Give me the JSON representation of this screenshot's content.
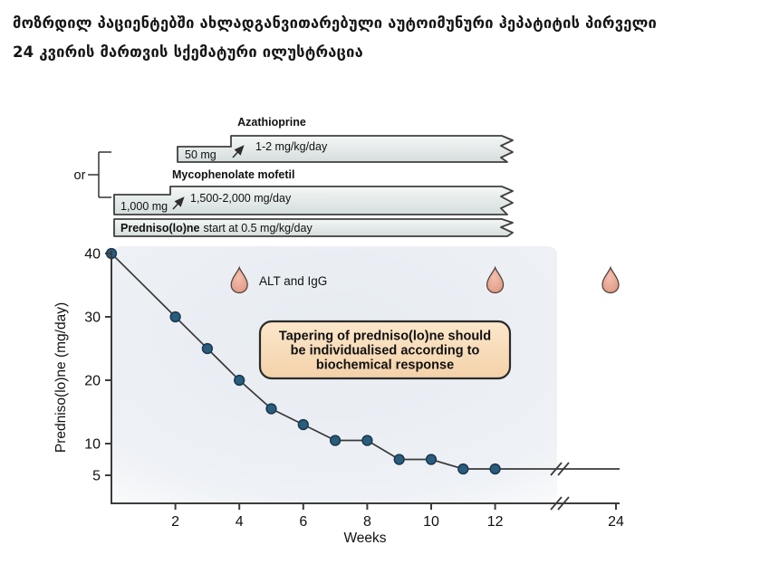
{
  "title": {
    "line1": "მოზრდილ პაციენტებში ახლადგანვითარებული აუტოიმუნური ჰეპატიტის პირველი",
    "line2": "24 კვირის მართვის სქემატური ილუსტრაცია"
  },
  "figure": {
    "or_label": "or",
    "azathioprine": {
      "name": "Azathioprine",
      "start_dose": "50 mg",
      "maintenance_dose": "1-2 mg/kg/day"
    },
    "mycophenolate": {
      "name": "Mycophenolate mofetil",
      "start_dose": "1,000 mg",
      "maintenance_dose": "1,500-2,000 mg/day"
    },
    "prednisolone": {
      "name_bold": "Predniso(lo)ne",
      "text_rest": "start at 0.5 mg/kg/day"
    },
    "monitoring_label": "ALT and IgG",
    "callout": {
      "line1": "Tapering of predniso(lo)ne should",
      "line2": "be individualised according to",
      "line3": "biochemical response"
    }
  },
  "chart_data": {
    "type": "line",
    "title": "",
    "xlabel": "Weeks",
    "ylabel": "Predniso(lo)ne (mg/day)",
    "x": [
      0,
      2,
      3,
      4,
      5,
      6,
      7,
      8,
      9,
      10,
      11,
      12
    ],
    "y": [
      40,
      30,
      25,
      20,
      15.5,
      13,
      10.5,
      10.5,
      7.5,
      7.5,
      6,
      6
    ],
    "tail": {
      "from_week": 12,
      "to_week": 24,
      "value": 6,
      "axis_break": true
    },
    "x_ticks": [
      2,
      4,
      6,
      8,
      10,
      12,
      24
    ],
    "y_ticks": [
      40,
      30,
      20,
      10,
      5
    ],
    "ylim": [
      0,
      42
    ],
    "grid": false,
    "legend": false,
    "blood_test_marker_weeks": [
      4,
      12,
      24
    ],
    "colors": {
      "point_fill": "#2b5c7c",
      "point_stroke": "#173850",
      "line": "#3a3a3a",
      "axis": "#3c3c3c",
      "drop_fill": "#e29b87",
      "callout_fill": "#f9ddb6",
      "callout_border": "#2b2b2b",
      "bar_fill_top": "#f2f5f4",
      "bar_fill_bottom": "#d6dedd",
      "bar_border": "#3f3f3f",
      "plot_bg": "#e9edf2"
    }
  }
}
